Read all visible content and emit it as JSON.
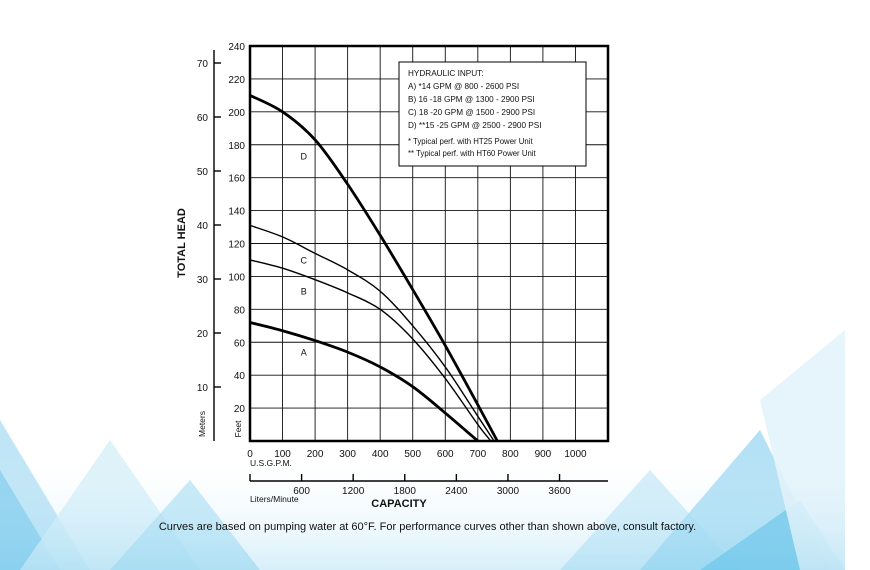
{
  "chart_data": {
    "type": "line",
    "title": "",
    "xlabel": "CAPACITY",
    "ylabel": "TOTAL HEAD",
    "x_unit": "U.S.G.P.M.",
    "x_secondary_unit": "Liters/Minute",
    "y_unit": "Feet",
    "y_secondary_unit": "Meters",
    "xlim": [
      0,
      1100
    ],
    "ylim": [
      0,
      240
    ],
    "x_ticks": [
      0,
      100,
      200,
      300,
      400,
      500,
      600,
      700,
      800,
      900,
      1000
    ],
    "x_secondary_ticks": [
      600,
      1200,
      1800,
      2400,
      3000,
      3600
    ],
    "y_ticks": [
      20,
      40,
      60,
      80,
      100,
      120,
      140,
      160,
      180,
      200,
      220,
      240
    ],
    "y_secondary_ticks": [
      10,
      20,
      30,
      40,
      50,
      60,
      70
    ],
    "grid": true,
    "series": [
      {
        "name": "A",
        "thick": true,
        "x": [
          0,
          100,
          200,
          300,
          400,
          500,
          600,
          700
        ],
        "y": [
          72,
          67,
          61,
          54,
          45,
          33,
          17,
          0
        ]
      },
      {
        "name": "B",
        "thick": false,
        "x": [
          0,
          100,
          200,
          300,
          400,
          500,
          600,
          700,
          740
        ],
        "y": [
          110,
          105,
          98,
          90,
          80,
          62,
          38,
          10,
          0
        ]
      },
      {
        "name": "C",
        "thick": false,
        "x": [
          0,
          100,
          200,
          300,
          400,
          500,
          600,
          700,
          750
        ],
        "y": [
          131,
          124,
          114,
          104,
          91,
          70,
          45,
          15,
          0
        ]
      },
      {
        "name": "D",
        "thick": true,
        "x": [
          0,
          100,
          200,
          300,
          400,
          500,
          600,
          700,
          760
        ],
        "y": [
          210,
          200,
          183,
          156,
          125,
          92,
          58,
          22,
          0
        ]
      }
    ],
    "series_labels": [
      {
        "text": "A",
        "x": 165,
        "y": 52
      },
      {
        "text": "B",
        "x": 165,
        "y": 89
      },
      {
        "text": "C",
        "x": 165,
        "y": 108
      },
      {
        "text": "D",
        "x": 165,
        "y": 171
      }
    ],
    "legend": {
      "placement": "top-right",
      "title": "HYDRAULIC INPUT:",
      "lines": [
        "A) *14 GPM @ 800 - 2600 PSI",
        "B) 16 -18 GPM @ 1300 - 2900 PSI",
        "C) 18 -20 GPM @ 1500 - 2900 PSI",
        "D) **15 -25 GPM @ 2500 - 2900 PSI"
      ],
      "notes": [
        "* Typical perf. with HT25 Power Unit",
        "** Typical perf. with HT60 Power Unit"
      ]
    }
  },
  "caption": "Curves are based on pumping water at 60°F. For performance curves other than shown above, consult factory.",
  "colors": {
    "line": "#000000",
    "grid": "#111111",
    "background": "#ffffff",
    "decor_light": "#dff1fa",
    "decor_mid": "#a9dcf2",
    "decor_dark": "#5fc0e8"
  }
}
